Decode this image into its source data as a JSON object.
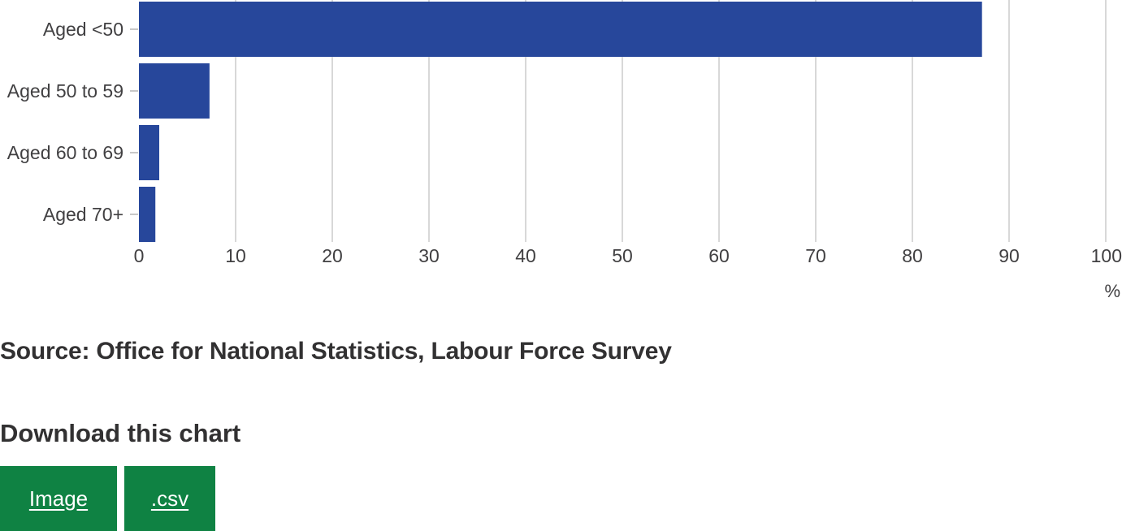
{
  "chart_data": {
    "type": "bar",
    "orientation": "horizontal",
    "categories": [
      "Aged <50",
      "Aged 50 to 59",
      "Aged 60 to 69",
      "Aged 70+"
    ],
    "values": [
      87.2,
      7.3,
      2.1,
      1.7
    ],
    "xlim": [
      0,
      100
    ],
    "xticks": [
      "0",
      "10",
      "20",
      "30",
      "40",
      "50",
      "60",
      "70",
      "80",
      "90",
      "100"
    ],
    "xlabel": "%",
    "ylabel": "",
    "grid": "vertical",
    "colors": {
      "bar": "#27479b",
      "grid": "#cccccc",
      "tick": "#b5b5b5"
    }
  },
  "source": "Source: Office for National Statistics, Labour Force Survey",
  "download": {
    "heading": "Download this chart",
    "image_label": "Image",
    "csv_label": ".csv",
    "button_color": "#0f8243"
  }
}
